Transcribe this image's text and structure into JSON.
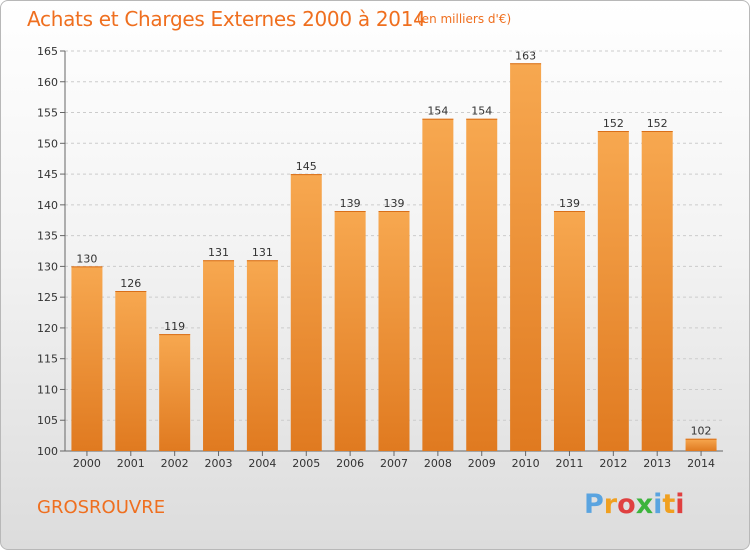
{
  "title": "Achats et Charges Externes 2000 à 2014",
  "subtitle": "(en milliers d'€)",
  "town": "GROSROUVRE",
  "logo": {
    "text": "Proxiti",
    "letter_colors": [
      "#5aa4e0",
      "#f0a020",
      "#e04040",
      "#3cb43c",
      "#5aa4e0",
      "#f0a020",
      "#e04040"
    ]
  },
  "colors": {
    "bar_light": "#f7a850",
    "bar_dark": "#e07a20",
    "title": "#ef6f1f",
    "grid": "#cccccc"
  },
  "chart_data": {
    "type": "bar",
    "categories": [
      "2000",
      "2001",
      "2002",
      "2003",
      "2004",
      "2005",
      "2006",
      "2007",
      "2008",
      "2009",
      "2010",
      "2011",
      "2012",
      "2013",
      "2014"
    ],
    "values": [
      130,
      126,
      119,
      131,
      131,
      145,
      139,
      139,
      154,
      154,
      163,
      139,
      152,
      152,
      102
    ],
    "ylim": [
      100,
      165
    ],
    "yticks": [
      100,
      105,
      110,
      115,
      120,
      125,
      130,
      135,
      140,
      145,
      150,
      155,
      160,
      165
    ],
    "grid": true,
    "xlabel": "",
    "ylabel": ""
  }
}
